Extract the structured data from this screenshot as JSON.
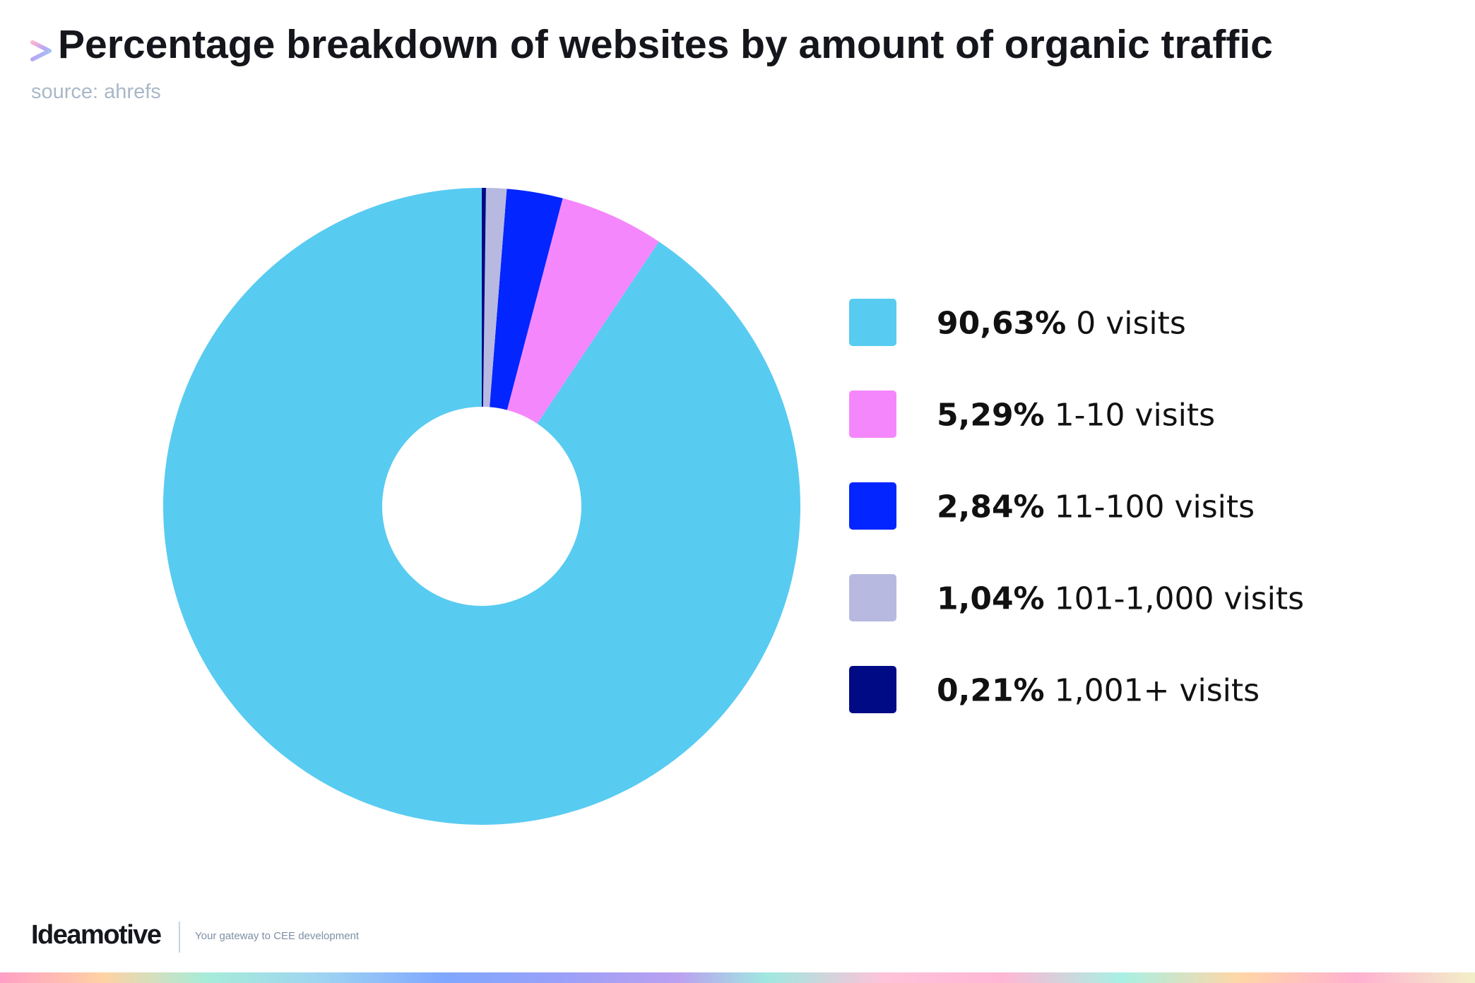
{
  "header": {
    "title": "Percentage breakdown of websites by amount of organic traffic",
    "subtitle": "source: ahrefs"
  },
  "footer": {
    "logo": "Ideamotive",
    "tagline": "Your gateway to CEE development"
  },
  "chart_data": {
    "type": "pie",
    "donut": true,
    "title": "Percentage breakdown of websites by amount of organic traffic",
    "subtitle": "source: ahrefs",
    "legend_position": "right",
    "slices": [
      {
        "label": "0 visits",
        "value": 90.63,
        "display": "90,63%",
        "color": "#58cbf1"
      },
      {
        "label": "1-10 visits",
        "value": 5.29,
        "display": "5,29%",
        "color": "#f587fc"
      },
      {
        "label": "11-100 visits",
        "value": 2.84,
        "display": "2,84%",
        "color": "#0325ff"
      },
      {
        "label": "101-1,000 visits",
        "value": 1.04,
        "display": "1,04%",
        "color": "#b7b9e0"
      },
      {
        "label": "1,001+ visits",
        "value": 0.21,
        "display": "0,21%",
        "color": "#000a85"
      }
    ]
  },
  "colors": {
    "title": "#15161c",
    "subtitle": "#a9b8c8"
  }
}
